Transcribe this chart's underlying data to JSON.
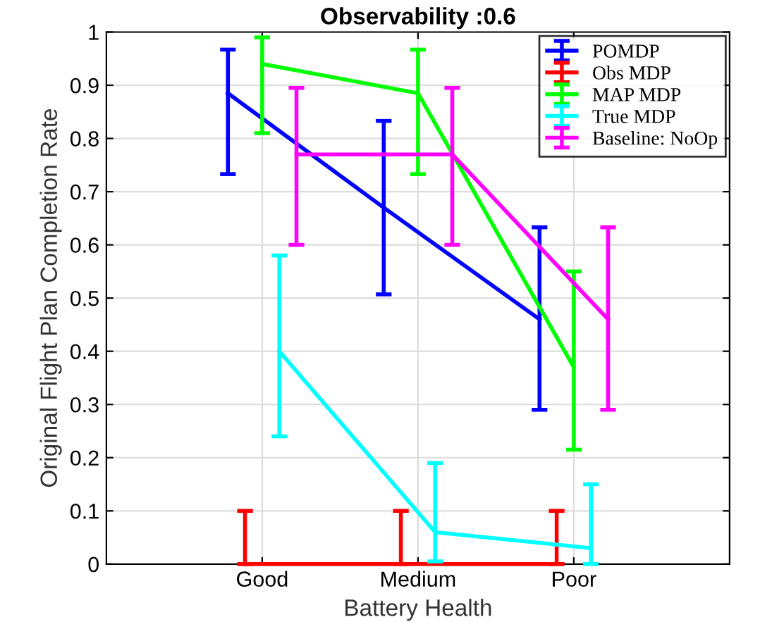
{
  "chart_data": {
    "type": "line",
    "title": "Observability :0.6",
    "xlabel": "Battery Health",
    "ylabel": "Original Flight Plan Completion Rate",
    "categories": [
      "Good",
      "Medium",
      "Poor"
    ],
    "ylim": [
      0,
      1
    ],
    "yticks": [
      0,
      0.1,
      0.2,
      0.3,
      0.4,
      0.5,
      0.6,
      0.7,
      0.8,
      0.9,
      1
    ],
    "grid": true,
    "legend": "top right",
    "marker": "none",
    "line_style": "solid",
    "series": [
      {
        "name": "POMDP",
        "color": "#0000ff",
        "values": [
          0.885,
          0.67,
          0.46
        ],
        "errors": [
          [
            0.733,
            0.967
          ],
          [
            0.507,
            0.833
          ],
          [
            0.29,
            0.633
          ]
        ]
      },
      {
        "name": "Obs MDP",
        "color": "#ff0000",
        "values": [
          0,
          0,
          0
        ],
        "errors": [
          [
            0,
            0.1
          ],
          [
            0,
            0.1
          ],
          [
            0,
            0.1
          ]
        ]
      },
      {
        "name": "MAP MDP",
        "color": "#00ff00",
        "values": [
          0.94,
          0.885,
          0.37
        ],
        "errors": [
          [
            0.81,
            0.99
          ],
          [
            0.733,
            0.967
          ],
          [
            0.215,
            0.55
          ]
        ]
      },
      {
        "name": "True MDP",
        "color": "#00ffff",
        "values": [
          0.4,
          0.06,
          0.03
        ],
        "errors": [
          [
            0.24,
            0.58
          ],
          [
            0.005,
            0.19
          ],
          [
            0,
            0.15
          ]
        ]
      },
      {
        "name": "Baseline: NoOp",
        "color": "#ff00ff",
        "values": [
          0.77,
          0.77,
          0.46
        ],
        "errors": [
          [
            0.6,
            0.895
          ],
          [
            0.6,
            0.895
          ],
          [
            0.29,
            0.633
          ]
        ]
      }
    ]
  }
}
